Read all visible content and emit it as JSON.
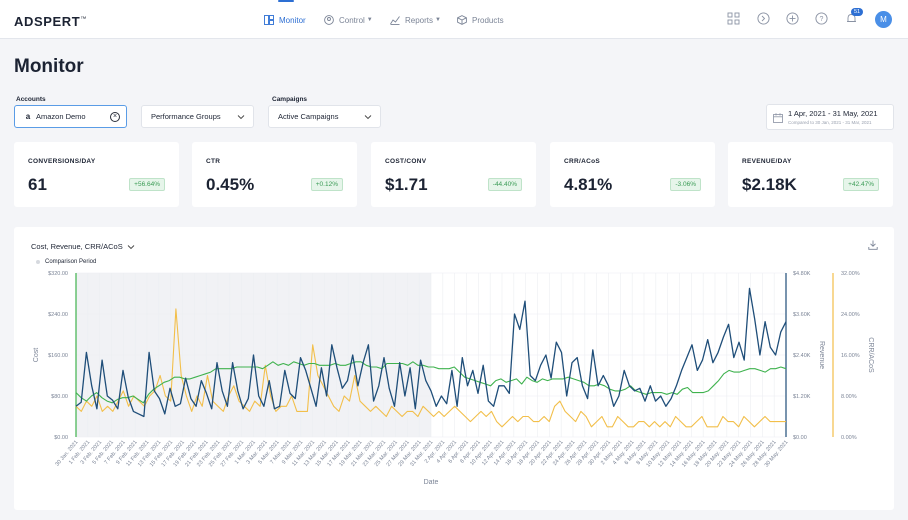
{
  "brand": {
    "logo": "ADSPERT",
    "tm": "™"
  },
  "nav": {
    "items": [
      {
        "label": "Monitor",
        "icon": "monitor-icon",
        "active": true
      },
      {
        "label": "Control",
        "icon": "control-icon"
      },
      {
        "label": "Reports",
        "icon": "reports-icon"
      },
      {
        "label": "Products",
        "icon": "products-icon"
      }
    ],
    "notifications_count": "51",
    "avatar_initial": "M"
  },
  "page": {
    "title": "Monitor"
  },
  "filters": {
    "accounts_label": "Accounts",
    "accounts_value": "Amazon Demo",
    "groups_value": "Performance Groups",
    "campaigns_label": "Campaigns",
    "campaigns_value": "Active Campaigns",
    "date_range": "1 Apr, 2021 - 31 May, 2021",
    "compared_to": "Compared to 30 Jan, 2021 - 31 Mar, 2021"
  },
  "kpis": [
    {
      "label": "CONVERSIONS/DAY",
      "value": "61",
      "delta": "+56.64%"
    },
    {
      "label": "CTR",
      "value": "0.45%",
      "delta": "+0.12%"
    },
    {
      "label": "COST/CONV",
      "value": "$1.71",
      "delta": "-44.40%"
    },
    {
      "label": "CRR/ACoS",
      "value": "4.81%",
      "delta": "-3.06%"
    },
    {
      "label": "REVENUE/DAY",
      "value": "$2.18K",
      "delta": "+42.47%"
    }
  ],
  "chart": {
    "selector_label": "Cost, Revenue, CRR/ACoS",
    "legend_label": "Comparison Period",
    "colors": {
      "cost": "#1f4e79",
      "revenue": "#3fb24e",
      "crr": "#f2bf4a",
      "comparison_bg": "#f1f2f5"
    }
  },
  "chart_data": {
    "type": "line",
    "xlabel": "Date",
    "y_left": {
      "label": "Cost",
      "ticks": [
        "$0.00",
        "$80.00",
        "$160.00",
        "$240.00",
        "$320.00"
      ],
      "range": [
        0,
        320
      ]
    },
    "y_right_revenue": {
      "label": "Revenue",
      "ticks": [
        "$0.00",
        "$1.20K",
        "$2.40K",
        "$3.60K",
        "$4.80K"
      ],
      "range": [
        0,
        4800
      ]
    },
    "y_right_crr": {
      "label": "CRR/ACoS",
      "ticks": [
        "0.00%",
        "8.00%",
        "16.00%",
        "24.00%",
        "32.00%"
      ],
      "range": [
        0,
        32
      ]
    },
    "comparison_period_end": "31 Mar. 2021",
    "x_tick_labels": [
      "30 Jan. 2021",
      "1 Feb. 2021",
      "3 Feb. 2021",
      "5 Feb. 2021",
      "7 Feb. 2021",
      "9 Feb. 2021",
      "11 Feb. 2021",
      "13 Feb. 2021",
      "15 Feb. 2021",
      "17 Feb. 2021",
      "19 Feb. 2021",
      "21 Feb. 2021",
      "23 Feb. 2021",
      "25 Feb. 2021",
      "27 Feb. 2021",
      "1 Mar. 2021",
      "3 Mar. 2021",
      "5 Mar. 2021",
      "7 Mar. 2021",
      "9 Mar. 2021",
      "11 Mar. 2021",
      "13 Mar. 2021",
      "15 Mar. 2021",
      "17 Mar. 2021",
      "19 Mar. 2021",
      "21 Mar. 2021",
      "23 Mar. 2021",
      "25 Mar. 2021",
      "27 Mar. 2021",
      "29 Mar. 2021",
      "31 Mar. 2021",
      "2 Apr. 2021",
      "4 Apr. 2021",
      "6 Apr. 2021",
      "8 Apr. 2021",
      "10 Apr. 2021",
      "12 Apr. 2021",
      "14 Apr. 2021",
      "16 Apr. 2021",
      "18 Apr. 2021",
      "20 Apr. 2021",
      "22 Apr. 2021",
      "24 Apr. 2021",
      "26 Apr. 2021",
      "28 Apr. 2021",
      "30 Apr. 2021",
      "2 May. 2021",
      "4 May. 2021",
      "6 May. 2021",
      "8 May. 2021",
      "10 May. 2021",
      "12 May. 2021",
      "14 May. 2021",
      "16 May. 2021",
      "18 May. 2021",
      "20 May. 2021",
      "22 May. 2021",
      "24 May. 2021",
      "26 May. 2021",
      "28 May. 2021",
      "30 May. 2021"
    ],
    "series": [
      {
        "name": "Cost",
        "axis": "left",
        "values": [
          60,
          68,
          165,
          100,
          55,
          150,
          80,
          72,
          55,
          130,
          78,
          50,
          45,
          40,
          165,
          90,
          75,
          45,
          95,
          60,
          65,
          115,
          75,
          60,
          110,
          85,
          55,
          145,
          90,
          60,
          145,
          90,
          55,
          75,
          160,
          80,
          60,
          110,
          55,
          60,
          130,
          85,
          75,
          155,
          130,
          95,
          60,
          135,
          80,
          180,
          135,
          95,
          110,
          160,
          100,
          145,
          180,
          70,
          100,
          155,
          95,
          60,
          145,
          80,
          135,
          55,
          150,
          110,
          90,
          60,
          80,
          65,
          130,
          60,
          155,
          100,
          130,
          85,
          140,
          70,
          60,
          100,
          100,
          85,
          240,
          210,
          265,
          120,
          110,
          140,
          160,
          115,
          185,
          165,
          80,
          145,
          155,
          100,
          75,
          170,
          100,
          120,
          100,
          60,
          80,
          130,
          100,
          90,
          95,
          70,
          100,
          70,
          80,
          60,
          75,
          100,
          130,
          155,
          180,
          130,
          150,
          190,
          145,
          165,
          195,
          220,
          155,
          185,
          150,
          290,
          230,
          160,
          225,
          175,
          160,
          205,
          225
        ]
      },
      {
        "name": "Revenue",
        "axis": "right-revenue",
        "values": [
          1300,
          1150,
          1050,
          1200,
          1300,
          1150,
          1050,
          1000,
          1100,
          1150,
          1150,
          1200,
          1100,
          1000,
          1250,
          1400,
          1500,
          1600,
          1650,
          1750,
          1750,
          1700,
          1700,
          1750,
          1800,
          1850,
          1900,
          2000,
          2000,
          2000,
          2000,
          2050,
          2050,
          2050,
          2050,
          2050,
          2000,
          2100,
          2200,
          2100,
          2150,
          2100,
          2200,
          2150,
          2100,
          2150,
          2150,
          2100,
          2100,
          2100,
          2150,
          2100,
          2100,
          2150,
          2200,
          2200,
          2100,
          2050,
          2050,
          2000,
          2150,
          2150,
          2150,
          2150,
          2100,
          2200,
          2100,
          2100,
          2050,
          2050,
          2000,
          2000,
          2000,
          2050,
          1900,
          1750,
          1700,
          1650,
          1600,
          1550,
          1500,
          1650,
          1700,
          1600,
          1650,
          1700,
          1550,
          1750,
          1650,
          1600,
          1700,
          1650,
          1700,
          1700,
          1700,
          1750,
          1700,
          1650,
          1600,
          1500,
          1500,
          1550,
          1500,
          1400,
          1350,
          1350,
          1400,
          1500,
          1350,
          1300,
          1250,
          1300,
          1300,
          1300,
          1250,
          1300,
          1250,
          1400,
          1450,
          1300,
          1300,
          1300,
          1350,
          1500,
          1650,
          1850,
          1950,
          1900,
          1900,
          1950,
          2000,
          2000,
          1950,
          1900,
          2000,
          2000,
          2050,
          2000
        ]
      },
      {
        "name": "CRR/ACoS",
        "axis": "right-crr",
        "values": [
          6,
          5,
          7,
          6,
          8,
          5,
          6,
          5,
          7,
          9,
          6,
          8,
          7,
          6,
          8,
          9,
          12,
          8,
          7,
          25,
          12,
          8,
          5,
          8,
          6,
          12,
          7,
          6,
          5,
          8,
          10,
          7,
          6,
          5,
          7,
          6,
          14,
          8,
          5,
          6,
          6,
          8,
          5,
          5,
          5,
          18,
          12,
          10,
          8,
          6,
          5,
          8,
          7,
          12,
          7,
          6,
          5,
          6,
          5,
          4,
          6,
          5,
          4,
          5,
          5,
          4,
          6,
          5,
          4,
          5,
          4,
          5,
          6,
          5,
          4,
          3,
          4,
          5,
          4,
          5,
          3,
          2,
          3,
          4,
          3,
          4,
          4,
          3,
          3,
          4,
          3,
          6,
          7,
          5,
          4,
          3,
          5,
          4,
          2,
          3,
          4,
          2,
          2,
          4,
          3,
          2,
          2,
          3,
          3,
          2,
          3,
          2,
          3,
          2,
          4,
          3,
          2,
          2,
          3,
          4,
          2,
          2,
          2,
          4,
          3,
          3,
          2,
          4,
          3,
          2,
          3,
          4,
          3,
          3,
          3,
          3
        ]
      }
    ]
  }
}
